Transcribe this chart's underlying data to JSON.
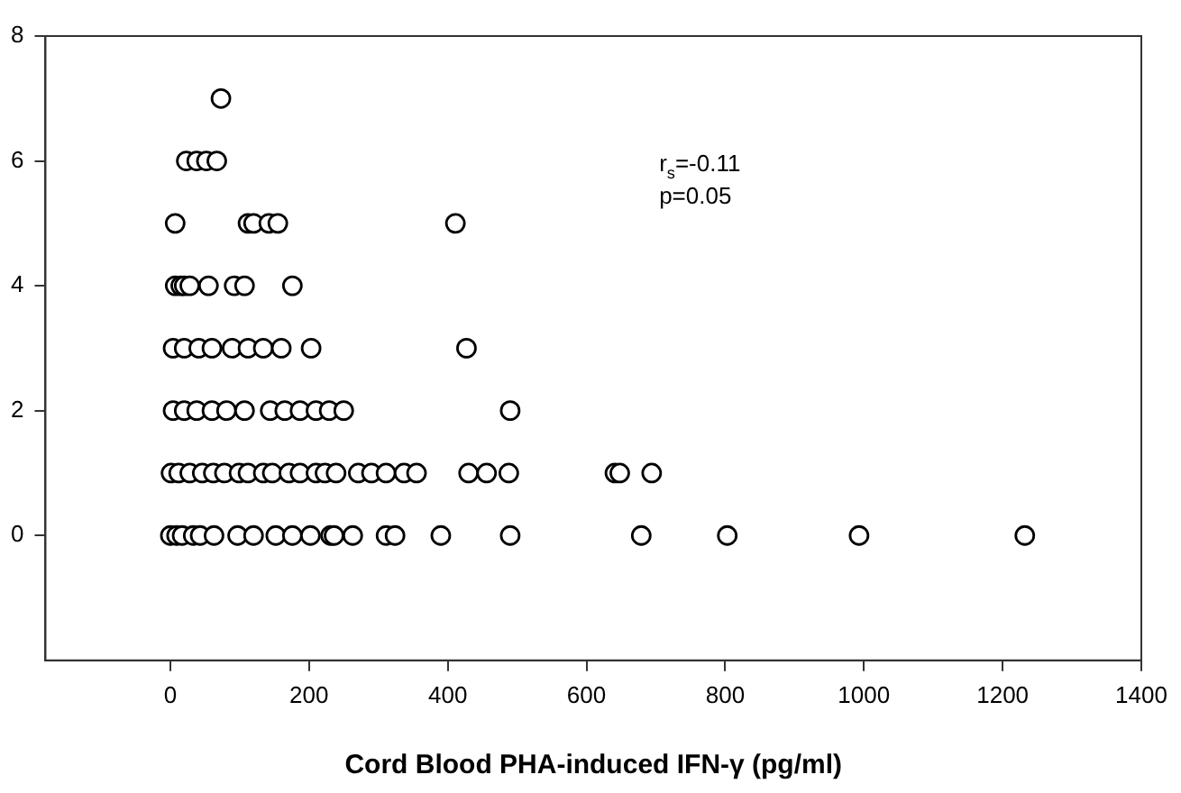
{
  "chart_data": {
    "type": "scatter",
    "xlabel": "Cord Blood PHA-induced IFN-γ (pg/ml)",
    "annotations": [
      "r$_{s}$=-0.11",
      "p=0.05"
    ],
    "xlim": [
      -180,
      1400
    ],
    "xticks": [
      0,
      200,
      400,
      600,
      800,
      1000,
      1200,
      1400
    ],
    "ylim": [
      -2,
      8
    ],
    "yticks": [
      0,
      2,
      4,
      6,
      8
    ],
    "grid": false,
    "legend": false,
    "marker": "circle",
    "series": [
      {
        "color": "#000000",
        "x": [
          73,
          23,
          38,
          52,
          67,
          7,
          112,
          120,
          142,
          155,
          411,
          7,
          15,
          20,
          28,
          55,
          92,
          107,
          176,
          4,
          20,
          41,
          60,
          89,
          112,
          134,
          160,
          203,
          427,
          4,
          20,
          38,
          60,
          81,
          107,
          144,
          165,
          187,
          210,
          229,
          250,
          490,
          1,
          12,
          28,
          46,
          62,
          78,
          99,
          112,
          134,
          147,
          171,
          187,
          210,
          223,
          239,
          271,
          290,
          311,
          337,
          355,
          430,
          456,
          488,
          641,
          648,
          694,
          0,
          9,
          17,
          33,
          43,
          63,
          97,
          120,
          152,
          176,
          202,
          231,
          236,
          263,
          311,
          324,
          390,
          490,
          679,
          803,
          993,
          1232
        ],
        "values": [
          7,
          6,
          6,
          6,
          6,
          5,
          5,
          5,
          5,
          5,
          5,
          4,
          4,
          4,
          4,
          4,
          4,
          4,
          4,
          3,
          3,
          3,
          3,
          3,
          3,
          3,
          3,
          3,
          3,
          2,
          2,
          2,
          2,
          2,
          2,
          2,
          2,
          2,
          2,
          2,
          2,
          2,
          1,
          1,
          1,
          1,
          1,
          1,
          1,
          1,
          1,
          1,
          1,
          1,
          1,
          1,
          1,
          1,
          1,
          1,
          1,
          1,
          1,
          1,
          1,
          1,
          1,
          1,
          0,
          0,
          0,
          0,
          0,
          0,
          0,
          0,
          0,
          0,
          0,
          0,
          0,
          0,
          0,
          0,
          0,
          0,
          0,
          0,
          0,
          0
        ]
      }
    ]
  }
}
